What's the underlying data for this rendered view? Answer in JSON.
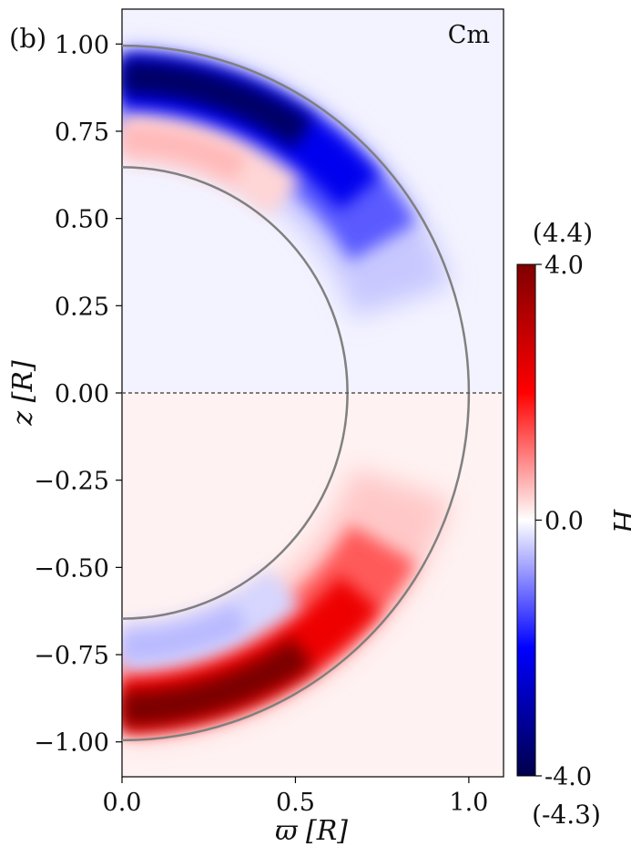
{
  "panel_label": "(b)",
  "chart_data": {
    "type": "heatmap",
    "annotation": "Cm",
    "xlabel": "ϖ [R]",
    "ylabel": "z [R]",
    "xlim": [
      0,
      1.1
    ],
    "ylim": [
      -1.1,
      1.1
    ],
    "x_ticks": [
      {
        "value": 0.0,
        "label": "0.0"
      },
      {
        "value": 0.5,
        "label": "0.5"
      },
      {
        "value": 1.0,
        "label": "1.0"
      }
    ],
    "y_ticks": [
      {
        "value": 1.0,
        "label": "1.00"
      },
      {
        "value": 0.75,
        "label": "0.75"
      },
      {
        "value": 0.5,
        "label": "0.50"
      },
      {
        "value": 0.25,
        "label": "0.25"
      },
      {
        "value": 0.0,
        "label": "0.00"
      },
      {
        "value": -0.25,
        "label": "−0.25"
      },
      {
        "value": -0.5,
        "label": "−0.50"
      },
      {
        "value": -0.75,
        "label": "−0.75"
      },
      {
        "value": -1.0,
        "label": "−1.00"
      }
    ],
    "reference_circles": [
      {
        "name": "inner",
        "radius": 0.65
      },
      {
        "name": "outer",
        "radius": 1.0
      }
    ],
    "equator_line": {
      "z": 0.0,
      "style": "dashed"
    },
    "colorbar": {
      "label": "H̃",
      "min": -4.0,
      "max": 4.0,
      "ticks": [
        {
          "value": 4.0,
          "label": "4.0"
        },
        {
          "value": 0.0,
          "label": "0.0"
        },
        {
          "value": -4.0,
          "label": "-4.0"
        }
      ],
      "actual_max_label": "(4.4)",
      "actual_min_label": "(-4.3)",
      "colormap": "seismic",
      "colors": {
        "negative": "#00004c",
        "mid_negative": "#0000ff",
        "zero": "#ffffff",
        "mid_positive": "#ff0000",
        "positive": "#7f0000"
      }
    },
    "features": [
      {
        "name": "northern-negative-band",
        "sign": "negative",
        "extreme": -4.3,
        "location": "upper hemisphere, just inside outer circle"
      },
      {
        "name": "northern-positive-band",
        "sign": "positive",
        "location": "upper hemisphere, just outside inner circle"
      },
      {
        "name": "southern-positive-band",
        "sign": "positive",
        "extreme": 4.4,
        "location": "lower hemisphere, just inside outer circle"
      },
      {
        "name": "southern-negative-band",
        "sign": "negative",
        "location": "lower hemisphere, just outside inner circle"
      }
    ]
  }
}
